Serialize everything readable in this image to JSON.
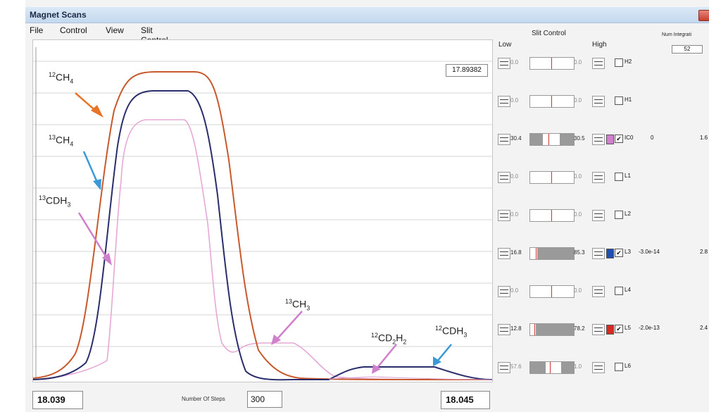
{
  "window": {
    "title": "Magnet Scans"
  },
  "menu": [
    "File",
    "Control",
    "View",
    "Slit Control"
  ],
  "plot": {
    "value_box": "17.89382",
    "annotations": [
      {
        "id": "12ch4",
        "sup": "12",
        "base": "CH",
        "sub": "4"
      },
      {
        "id": "13ch4",
        "sup": "13",
        "base": "CH",
        "sub": "4"
      },
      {
        "id": "13cdh3",
        "sup": "13",
        "base": "CDH",
        "sub": "3"
      },
      {
        "id": "13ch3",
        "sup": "13",
        "base": "CH",
        "sub": "3"
      },
      {
        "id": "12cd2h2",
        "sup": "12",
        "base": "CD",
        "sub": "2",
        "base2": "H",
        "sub2": "2"
      },
      {
        "id": "12cdh3",
        "sup": "12",
        "base": "CDH",
        "sub": "3"
      }
    ],
    "colors": {
      "orange": "#c8592c",
      "navy": "#2a2d6b",
      "pink": "#e6a8d6",
      "arrow_orange": "#e8742a",
      "arrow_blue": "#3a9ad8",
      "arrow_pink": "#cf7fcb"
    }
  },
  "footer": {
    "left_value": "18.039",
    "steps_label": "Number Of Steps",
    "steps_value": "300",
    "right_value": "18.045"
  },
  "slit_control": {
    "title": "Slit Control",
    "low_label": "Low",
    "high_label": "High",
    "num_integration_label": "Num Integrati",
    "num_integration_value": "52",
    "rows": [
      {
        "label": "H2",
        "low": "0.0",
        "high": "0.0",
        "dim": true,
        "checked": false,
        "v1": "",
        "v2": ""
      },
      {
        "label": "H1",
        "low": "0.0",
        "high": "0.0",
        "dim": true,
        "checked": false,
        "v1": "",
        "v2": ""
      },
      {
        "label": "IC0",
        "low": "30.4",
        "high": "30.5",
        "dim": false,
        "checked": true,
        "color": "#d27fd0",
        "v1": "0",
        "v2": "1.6"
      },
      {
        "label": "L1",
        "low": "0.0",
        "high": "0.0",
        "dim": true,
        "checked": false,
        "v1": "",
        "v2": ""
      },
      {
        "label": "L2",
        "low": "0.0",
        "high": "0.0",
        "dim": true,
        "checked": false,
        "v1": "",
        "v2": ""
      },
      {
        "label": "L3",
        "low": "16.8",
        "high": "85.3",
        "dim": false,
        "checked": true,
        "color": "#1f4fb3",
        "v1": "-3.0e-14",
        "v2": "2.8"
      },
      {
        "label": "L4",
        "low": "0.0",
        "high": "0.0",
        "dim": true,
        "checked": false,
        "v1": "",
        "v2": ""
      },
      {
        "label": "L5",
        "low": "12.8",
        "high": "78.2",
        "dim": false,
        "checked": true,
        "color": "#d62a22",
        "v1": "-2.0e-13",
        "v2": "2.4"
      },
      {
        "label": "L6",
        "low": "57.6",
        "high": "1.0",
        "dim": true,
        "checked": false,
        "v1": "",
        "v2": ""
      }
    ]
  }
}
